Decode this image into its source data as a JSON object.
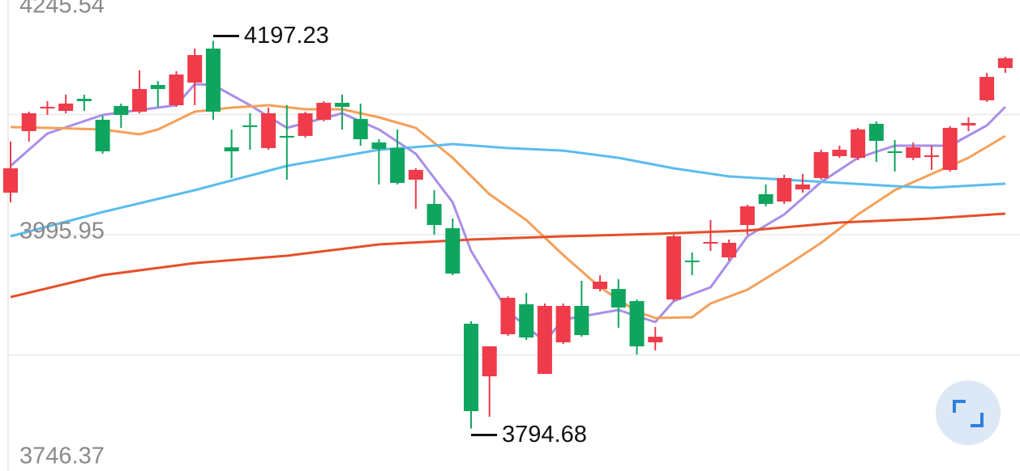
{
  "chart_data": {
    "type": "candlestick",
    "up_color": "#ef3b4a",
    "down_color": "#0fa55f",
    "ylim": [
      3746.37,
      4245.54
    ],
    "yticks": [
      3746.37,
      3995.95,
      4245.54
    ],
    "grid": true,
    "open": [
      4039.6,
      4103.5,
      4127.0,
      4124.5,
      4137.1,
      4115.3,
      4129.6,
      4123.7,
      4151.4,
      4130.4,
      4153.9,
      4189.2,
      4086.7,
      4109.4,
      4085.9,
      4098.5,
      4098.5,
      4115.3,
      4132.9,
      4116.1,
      4091.7,
      4085.9,
      4053.1,
      4027.9,
      4002.7,
      3903.5,
      3848.9,
      3892.6,
      3923.7,
      3851.4,
      3884.2,
      3922.0,
      3939.6,
      3939.6,
      3927.0,
      3884.2,
      3928.7,
      3969.1,
      3986.7,
      3972.4,
      4006.0,
      4038.0,
      4030.4,
      4043.0,
      4054.8,
      4077.5,
      4075.8,
      4111.1,
      4082.5,
      4075.8,
      4076.6,
      4063.2,
      4109.4,
      4135.5,
      4169.1
    ],
    "high": [
      4092.6,
      4123.7,
      4134.6,
      4141.3,
      4141.3,
      4119.5,
      4132.1,
      4166.5,
      4155.6,
      4165.7,
      4189.2,
      4197.23,
      4105.2,
      4122.0,
      4127.9,
      4130.4,
      4123.7,
      4134.6,
      4141.3,
      4132.1,
      4095.1,
      4105.2,
      4064.9,
      4042.2,
      4012.8,
      3906.0,
      3880.0,
      3932.0,
      3935.4,
      3924.5,
      3924.5,
      3948.1,
      3953.9,
      3949.7,
      3928.7,
      3900.1,
      3996.0,
      3977.5,
      4011.1,
      3990.9,
      4027.0,
      4048.1,
      4058.1,
      4059.0,
      4084.2,
      4088.4,
      4106.9,
      4113.6,
      4094.3,
      4091.7,
      4088.4,
      4108.6,
      4117.8,
      4164.0,
      4180.8
    ],
    "low": [
      4029.6,
      4092.6,
      4120.3,
      4122.0,
      4124.5,
      4080.0,
      4106.9,
      4122.0,
      4128.7,
      4128.7,
      4130.4,
      4115.3,
      4054.8,
      4084.2,
      4084.2,
      4053.1,
      4096.8,
      4113.6,
      4105.2,
      4088.4,
      4048.1,
      4048.1,
      4022.8,
      3996.0,
      3953.9,
      3794.68,
      3806.9,
      3890.9,
      3886.7,
      3851.4,
      3882.5,
      3890.0,
      3937.1,
      3899.3,
      3871.6,
      3875.8,
      3927.0,
      3953.9,
      3979.1,
      3969.1,
      3996.0,
      4025.4,
      4027.9,
      4039.6,
      4053.1,
      4075.8,
      4073.3,
      4071.6,
      4061.5,
      4073.3,
      4063.2,
      4061.5,
      4103.5,
      4133.8,
      4164.0
    ],
    "close": [
      4064.9,
      4122.0,
      4128.7,
      4132.1,
      4134.6,
      4082.5,
      4120.3,
      4147.2,
      4147.2,
      4162.3,
      4182.5,
      4123.7,
      4082.5,
      4107.7,
      4122.0,
      4096.8,
      4122.0,
      4132.9,
      4128.7,
      4095.1,
      4085.0,
      4049.7,
      4063.2,
      4006.0,
      3955.6,
      3812.7,
      3880.0,
      3930.4,
      3889.2,
      3922.0,
      3922.0,
      3891.7,
      3947.2,
      3920.3,
      3880.0,
      3890.0,
      3994.3,
      3967.4,
      3988.4,
      3987.5,
      4025.4,
      4027.9,
      4054.8,
      4048.1,
      4081.7,
      4084.2,
      4105.2,
      4093.4,
      4081.7,
      4086.7,
      4078.3,
      4106.9,
      4111.9,
      4159.8,
      4179.2
    ],
    "lines": [
      {
        "color": "#a98ee8",
        "x": [
          0,
          2,
          5,
          9,
          10,
          11,
          13,
          15,
          18,
          20,
          22,
          24,
          25,
          27,
          29,
          30,
          33,
          35,
          36,
          38,
          40,
          42,
          44,
          46,
          48,
          51,
          53,
          54
        ],
        "values": [
          4067.4,
          4101.0,
          4120.3,
          4130.4,
          4152.3,
          4151.4,
          4130.4,
          4106.9,
          4122.0,
          4105.2,
          4080.0,
          4029.6,
          3979.1,
          3916.1,
          3885.0,
          3907.7,
          3917.8,
          3905.2,
          3927.0,
          3941.3,
          3994.3,
          4017.0,
          4050.6,
          4075.8,
          4088.4,
          4088.4,
          4109.4,
          4128.7
        ]
      },
      {
        "color": "#f5a05a",
        "x": [
          0,
          2,
          5,
          7,
          8,
          10,
          12,
          14,
          16,
          18,
          20,
          22,
          24,
          26,
          28,
          30,
          32,
          34,
          35,
          37,
          38,
          40,
          42,
          44,
          46,
          48,
          50,
          52,
          54
        ],
        "values": [
          4107.7,
          4106.9,
          4105.2,
          4100.2,
          4105.2,
          4123.7,
          4127.9,
          4130.4,
          4126.2,
          4126.2,
          4117.8,
          4106.9,
          4075.8,
          4038.0,
          4011.1,
          3974.9,
          3941.3,
          3916.1,
          3909.4,
          3910.2,
          3924.5,
          3938.8,
          3962.3,
          3987.5,
          4017.0,
          4042.2,
          4059.0,
          4075.8,
          4098.5
        ]
      },
      {
        "color": "#5bbcee",
        "x": [
          0,
          5,
          10,
          15,
          20,
          23,
          24,
          27,
          30,
          33,
          36,
          39,
          42,
          45,
          48,
          50,
          54
        ],
        "values": [
          3994.3,
          4019.5,
          4042.2,
          4067.4,
          4084.2,
          4088.4,
          4090.1,
          4085.9,
          4083.3,
          4075.8,
          4064.9,
          4056.5,
          4053.1,
          4049.7,
          4046.4,
          4044.7,
          4048.9
        ]
      },
      {
        "color": "#e4502a",
        "x": [
          0,
          5,
          10,
          15,
          20,
          25,
          30,
          35,
          40,
          45,
          50,
          54
        ],
        "values": [
          3931.2,
          3953.9,
          3966.5,
          3974.1,
          3985.9,
          3990.9,
          3994.3,
          3996.8,
          4000.2,
          4008.6,
          4012.8,
          4017.8
        ]
      }
    ]
  }
}
